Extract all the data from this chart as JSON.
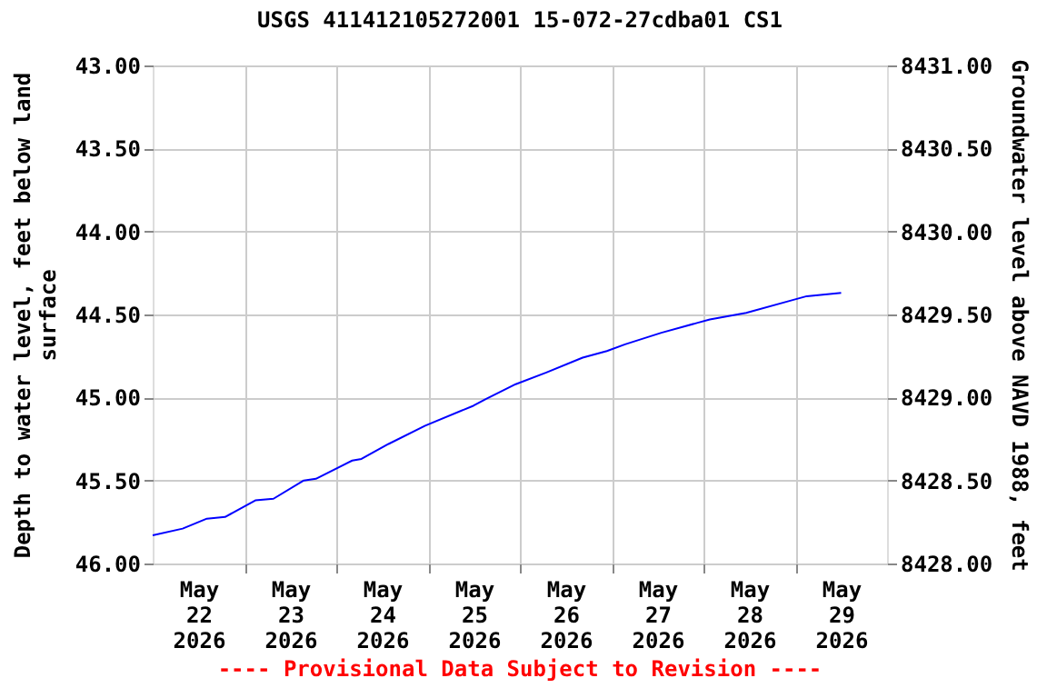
{
  "chart_data": {
    "type": "line",
    "title": "USGS 411412105272001 15-072-27cdba01 CS1",
    "ylabel": "Depth to water level, feet below land surface",
    "y2label": "Groundwater level above NAVD 1988, feet",
    "annotations": [
      "---- Provisional Data Subject to Revision ----"
    ],
    "x": [
      "2026-05-22T00:00",
      "2026-05-22T07:50",
      "2026-05-22T14:10",
      "2026-05-22T18:55",
      "2026-05-23T02:50",
      "2026-05-23T07:35",
      "2026-05-23T15:30",
      "2026-05-23T18:40",
      "2026-05-24T04:10",
      "2026-05-24T06:35",
      "2026-05-24T13:40",
      "2026-05-24T23:15",
      "2026-05-25T11:50",
      "2026-05-25T15:05",
      "2026-05-25T22:55",
      "2026-05-26T06:55",
      "2026-05-26T16:25",
      "2026-05-26T22:45",
      "2026-05-27T03:30",
      "2026-05-27T13:00",
      "2026-05-27T22:30",
      "2026-05-28T01:40",
      "2026-05-28T11:10",
      "2026-05-28T22:15",
      "2026-05-29T03:00",
      "2026-05-29T12:00"
    ],
    "series": [
      {
        "color": "#0000ff",
        "values": [
          45.83,
          45.79,
          45.73,
          45.72,
          45.62,
          45.61,
          45.5,
          45.49,
          45.38,
          45.37,
          45.28,
          45.17,
          45.05,
          45.01,
          44.92,
          44.85,
          44.76,
          44.72,
          44.68,
          44.61,
          44.55,
          44.53,
          44.49,
          44.42,
          44.39,
          44.37
        ]
      }
    ],
    "xlim": [
      "2026-05-22T00:00",
      "2026-05-30T00:00"
    ],
    "xticks": [
      {
        "value": "2026-05-22T12:00",
        "label": "May\n22\n2026"
      },
      {
        "value": "2026-05-23T00:00",
        "label": null
      },
      {
        "value": "2026-05-23T12:00",
        "label": "May\n23\n2026"
      },
      {
        "value": "2026-05-24T00:00",
        "label": null
      },
      {
        "value": "2026-05-24T12:00",
        "label": "May\n24\n2026"
      },
      {
        "value": "2026-05-25T00:00",
        "label": null
      },
      {
        "value": "2026-05-25T12:00",
        "label": "May\n25\n2026"
      },
      {
        "value": "2026-05-26T00:00",
        "label": null
      },
      {
        "value": "2026-05-26T12:00",
        "label": "May\n26\n2026"
      },
      {
        "value": "2026-05-27T00:00",
        "label": null
      },
      {
        "value": "2026-05-27T12:00",
        "label": "May\n27\n2026"
      },
      {
        "value": "2026-05-28T00:00",
        "label": null
      },
      {
        "value": "2026-05-28T12:00",
        "label": "May\n28\n2026"
      },
      {
        "value": "2026-05-29T00:00",
        "label": null
      },
      {
        "value": "2026-05-29T12:00",
        "label": "May\n29\n2026"
      }
    ],
    "ylim": [
      46,
      43
    ],
    "yticks": [
      {
        "value": 43,
        "label": "43.00"
      },
      {
        "value": 43.5,
        "label": "43.50"
      },
      {
        "value": 44,
        "label": "44.00"
      },
      {
        "value": 44.5,
        "label": "44.50"
      },
      {
        "value": 45,
        "label": "45.00"
      },
      {
        "value": 45.5,
        "label": "45.50"
      },
      {
        "value": 46,
        "label": "46.00"
      }
    ],
    "y2lim": [
      8428,
      8431
    ],
    "y2ticks": [
      {
        "value": 8428,
        "label": "8428.00"
      },
      {
        "value": 8428.5,
        "label": "8428.50"
      },
      {
        "value": 8429,
        "label": "8429.00"
      },
      {
        "value": 8429.5,
        "label": "8429.50"
      },
      {
        "value": 8430,
        "label": "8430.00"
      },
      {
        "value": 8430.5,
        "label": "8430.50"
      },
      {
        "value": 8431,
        "label": "8431.00"
      }
    ],
    "grid": true,
    "marker": "none",
    "line_style": "solid"
  }
}
